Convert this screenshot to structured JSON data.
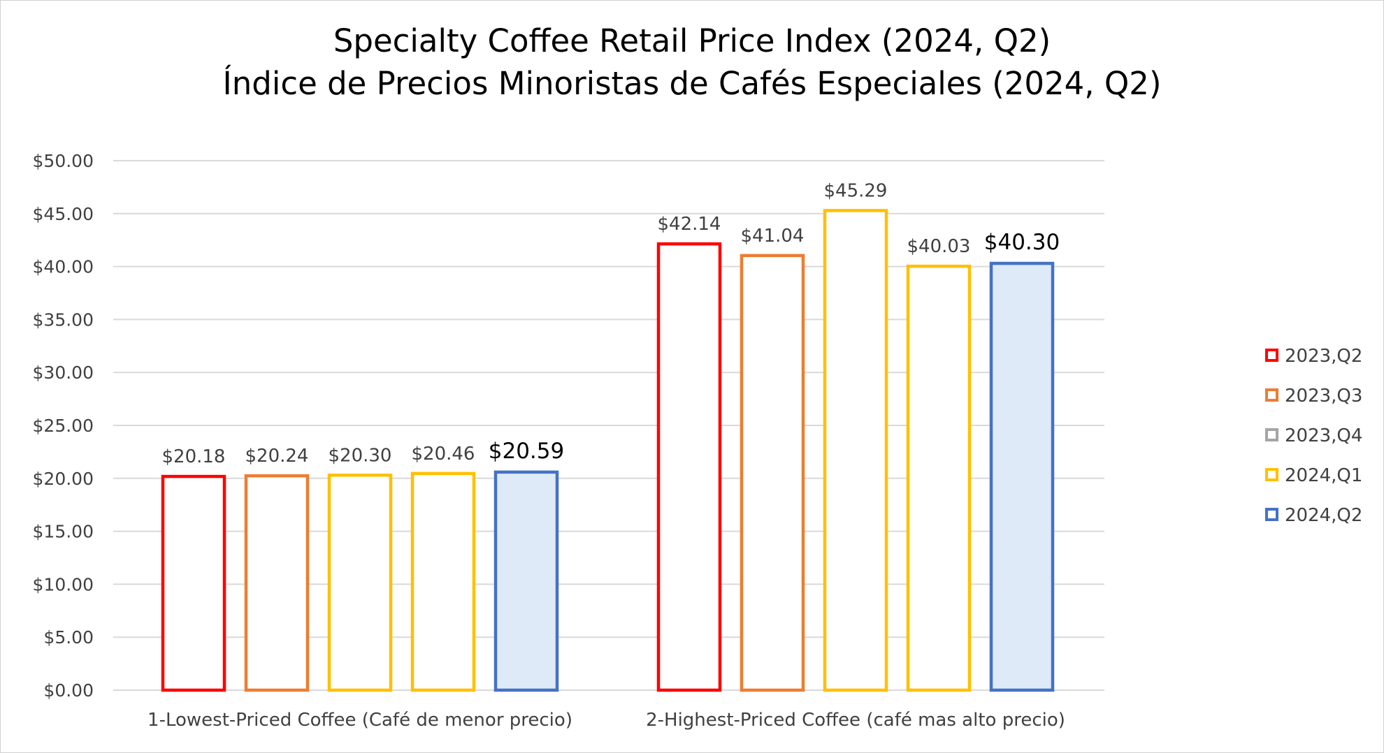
{
  "chart_data": {
    "type": "bar",
    "title": [
      "Specialty Coffee Retail Price Index (2024, Q2)",
      "Índice de Precios Minoristas de Cafés Especiales (2024, Q2)"
    ],
    "categories": [
      "1-Lowest-Priced Coffee (Café de menor precio)",
      "2-Highest-Priced Coffee (café mas alto precio)"
    ],
    "series": [
      {
        "name": "2023,Q2",
        "color": "#ff0000",
        "fill": "#ffffff",
        "values": [
          20.18,
          42.14
        ],
        "labels": [
          "$20.18",
          "$42.14"
        ]
      },
      {
        "name": "2023,Q3",
        "color": "#ed7d31",
        "fill": "#ffffff",
        "values": [
          20.24,
          41.04
        ],
        "labels": [
          "$20.24",
          "$41.04"
        ]
      },
      {
        "name": "2023,Q4",
        "color": "#a5a5a5",
        "fill": "#ffffff",
        "values": [
          null,
          null
        ],
        "labels": [
          null,
          null
        ]
      },
      {
        "name": "2024,Q1",
        "color": "#ffc000",
        "fill": "#ffffff",
        "values": [
          20.3,
          45.29
        ],
        "labels": [
          "$20.30",
          "$45.29"
        ],
        "note_colors": [
          "#ffc000",
          "#ffc000"
        ]
      },
      {
        "name": "2024,Q2",
        "color": "#4472c4",
        "fill": "#deeaf7",
        "values": [
          20.59,
          40.3
        ],
        "labels": [
          "$20.59",
          "$40.30"
        ],
        "emphasized": true
      }
    ],
    "extra_bars": [
      {
        "series": "2024,Q1",
        "category_index": 0,
        "position": 3,
        "value": 20.46,
        "label": "$20.46",
        "color": "#ffc000"
      },
      {
        "series": "2024,Q1",
        "category_index": 1,
        "position": 3,
        "value": 40.03,
        "label": "$40.03",
        "color": "#ffc000"
      }
    ],
    "ylim": [
      0,
      50
    ],
    "yticks": [
      0,
      5,
      10,
      15,
      20,
      25,
      30,
      35,
      40,
      45,
      50
    ],
    "ytick_labels": [
      "$0.00",
      "$5.00",
      "$10.00",
      "$15.00",
      "$20.00",
      "$25.00",
      "$30.00",
      "$35.00",
      "$40.00",
      "$45.00",
      "$50.00"
    ],
    "grid": true,
    "legend": "right",
    "xlabel": "",
    "ylabel": ""
  }
}
